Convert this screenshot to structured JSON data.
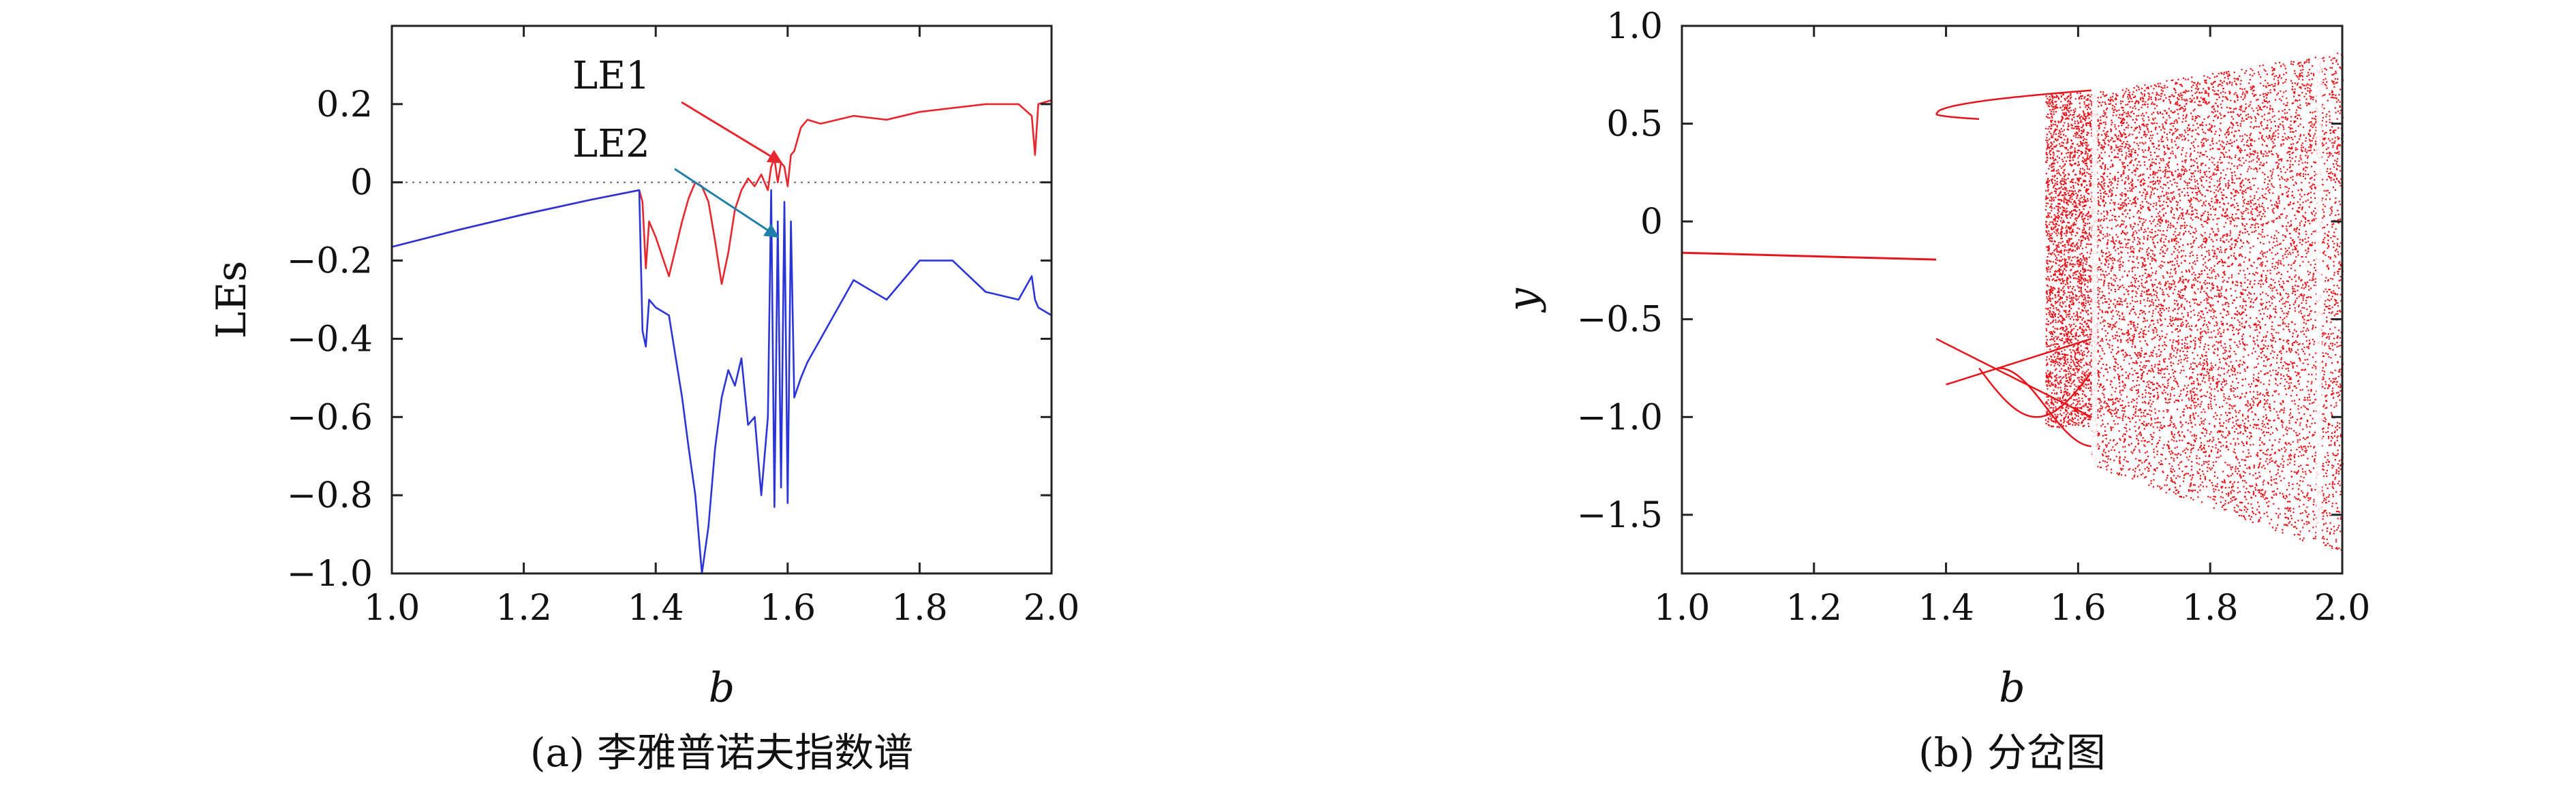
{
  "chart_data": [
    {
      "type": "line",
      "caption": "(a) 李雅普诺夫指数谱",
      "xlabel": "b",
      "ylabel": "LEs",
      "xlim": [
        1.0,
        2.0
      ],
      "ylim": [
        -1.0,
        0.4
      ],
      "xticks": [
        "1.0",
        "1.2",
        "1.4",
        "1.6",
        "1.8",
        "2.0"
      ],
      "xtick_values": [
        1.0,
        1.2,
        1.4,
        1.6,
        1.8,
        2.0
      ],
      "yticks": [
        "−1.0",
        "−0.8",
        "−0.6",
        "−0.4",
        "−0.2",
        "0",
        "0.2"
      ],
      "ytick_values": [
        -1.0,
        -0.8,
        -0.6,
        -0.4,
        -0.2,
        0.0,
        0.2
      ],
      "zero_line": true,
      "series": [
        {
          "name": "LE1",
          "color": "#e8262e",
          "x": [
            1.0,
            1.1,
            1.2,
            1.3,
            1.375,
            1.38,
            1.385,
            1.39,
            1.4,
            1.42,
            1.44,
            1.45,
            1.46,
            1.47,
            1.48,
            1.49,
            1.5,
            1.51,
            1.52,
            1.53,
            1.54,
            1.55,
            1.56,
            1.57,
            1.575,
            1.58,
            1.585,
            1.59,
            1.595,
            1.6,
            1.605,
            1.61,
            1.62,
            1.63,
            1.65,
            1.7,
            1.75,
            1.8,
            1.85,
            1.9,
            1.95,
            1.97,
            1.975,
            1.98,
            2.0
          ],
          "y": [
            -0.165,
            -0.122,
            -0.082,
            -0.045,
            -0.02,
            -0.05,
            -0.22,
            -0.1,
            -0.14,
            -0.24,
            -0.1,
            -0.04,
            0.0,
            -0.01,
            -0.05,
            -0.15,
            -0.26,
            -0.18,
            -0.07,
            -0.02,
            0.01,
            -0.01,
            0.02,
            -0.02,
            0.04,
            0.06,
            0.0,
            0.05,
            0.04,
            -0.01,
            0.07,
            0.08,
            0.14,
            0.16,
            0.15,
            0.17,
            0.16,
            0.18,
            0.19,
            0.2,
            0.2,
            0.17,
            0.07,
            0.2,
            0.21
          ]
        },
        {
          "name": "LE2",
          "color": "#2a34d8",
          "x": [
            1.0,
            1.1,
            1.2,
            1.3,
            1.375,
            1.38,
            1.385,
            1.39,
            1.4,
            1.42,
            1.44,
            1.45,
            1.46,
            1.47,
            1.48,
            1.49,
            1.5,
            1.51,
            1.52,
            1.53,
            1.54,
            1.55,
            1.56,
            1.57,
            1.575,
            1.58,
            1.585,
            1.59,
            1.595,
            1.6,
            1.605,
            1.61,
            1.62,
            1.63,
            1.65,
            1.7,
            1.75,
            1.8,
            1.85,
            1.9,
            1.95,
            1.97,
            1.975,
            1.98,
            2.0
          ],
          "y": [
            -0.165,
            -0.122,
            -0.082,
            -0.045,
            -0.02,
            -0.38,
            -0.42,
            -0.3,
            -0.32,
            -0.34,
            -0.55,
            -0.68,
            -0.8,
            -1.0,
            -0.88,
            -0.68,
            -0.55,
            -0.48,
            -0.52,
            -0.45,
            -0.62,
            -0.6,
            -0.8,
            -0.6,
            -0.02,
            -0.83,
            -0.1,
            -0.78,
            -0.05,
            -0.82,
            -0.1,
            -0.55,
            -0.5,
            -0.46,
            -0.4,
            -0.25,
            -0.3,
            -0.2,
            -0.2,
            -0.28,
            -0.3,
            -0.24,
            -0.3,
            -0.32,
            -0.34
          ]
        }
      ],
      "annotations": [
        {
          "text": "LE1",
          "color": "#e8262e",
          "points_to_x": 1.58,
          "points_to_y": 0.04
        },
        {
          "text": "LE2",
          "color": "#1f7fa8",
          "points_to_x": 1.575,
          "points_to_y": -0.15
        }
      ]
    },
    {
      "type": "scatter",
      "caption": "(b) 分岔图",
      "xlabel": "b",
      "ylabel": "y",
      "xlim": [
        1.0,
        2.0
      ],
      "ylim": [
        -1.8,
        1.0
      ],
      "xticks": [
        "1.0",
        "1.2",
        "1.4",
        "1.6",
        "1.8",
        "2.0"
      ],
      "xtick_values": [
        1.0,
        1.2,
        1.4,
        1.6,
        1.8,
        2.0
      ],
      "yticks": [
        "1.0",
        "0.5",
        "0",
        "−0.5",
        "−1.0",
        "−1.5"
      ],
      "ytick_values": [
        1.0,
        0.5,
        0.0,
        -0.5,
        -1.0,
        -1.5
      ],
      "color": "#e8141c",
      "fixed_point_branch": {
        "x": [
          1.0,
          1.385
        ],
        "y": [
          -0.16,
          -0.195
        ]
      },
      "chaotic_region": {
        "x_start": 1.62,
        "x_end": 2.0,
        "upper_y": [
          0.66,
          0.87
        ],
        "lower_y": [
          -1.25,
          -1.7
        ]
      }
    }
  ]
}
